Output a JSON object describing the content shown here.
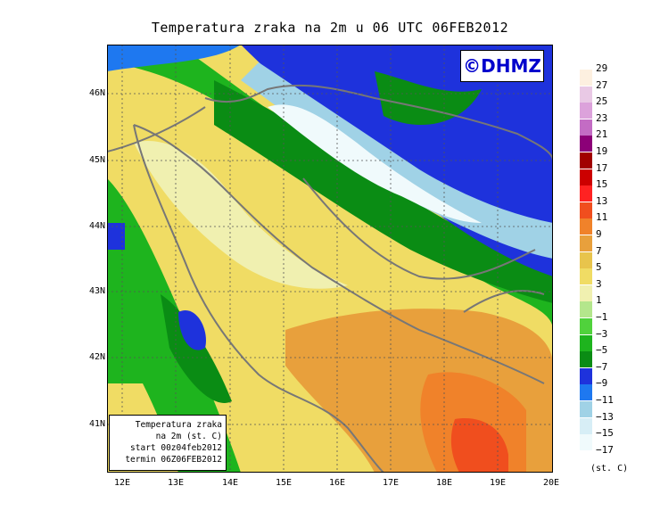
{
  "title": "Temperatura zraka na 2m u 06 UTC 06FEB2012",
  "logo": "©DHMZ",
  "info": {
    "line1": "Temperatura zraka",
    "line2": "na 2m (st. C)",
    "line3": "start 00z04feb2012",
    "line4": "termin 06Z06FEB2012"
  },
  "axes": {
    "lat_labels": [
      "46N",
      "45N",
      "44N",
      "43N",
      "42N",
      "41N"
    ],
    "lon_labels": [
      "12E",
      "13E",
      "14E",
      "15E",
      "16E",
      "17E",
      "18E",
      "19E",
      "20E"
    ]
  },
  "legend": {
    "unit": "(st. C)",
    "labels": [
      "29",
      "27",
      "25",
      "23",
      "21",
      "19",
      "17",
      "15",
      "13",
      "11",
      "9",
      "7",
      "5",
      "3",
      "1",
      "−1",
      "−3",
      "−5",
      "−7",
      "−9",
      "−11",
      "−13",
      "−15",
      "−17"
    ],
    "colors": [
      "#fdf0e0",
      "#e9c9e5",
      "#dca2db",
      "#c36cc4",
      "#8c0078",
      "#a10000",
      "#cc0000",
      "#ff2222",
      "#f04e1e",
      "#f0822a",
      "#e8a03c",
      "#e8c44c",
      "#f0dc64",
      "#f0f0b0",
      "#b4e68c",
      "#50d23c",
      "#1eb41e",
      "#0a8c14",
      "#1e32dc",
      "#1e78f0",
      "#a0d2e6",
      "#d7eef6",
      "#f0fafc"
    ]
  },
  "colors": {
    "land_border": "#777777",
    "grid": "#555555"
  }
}
